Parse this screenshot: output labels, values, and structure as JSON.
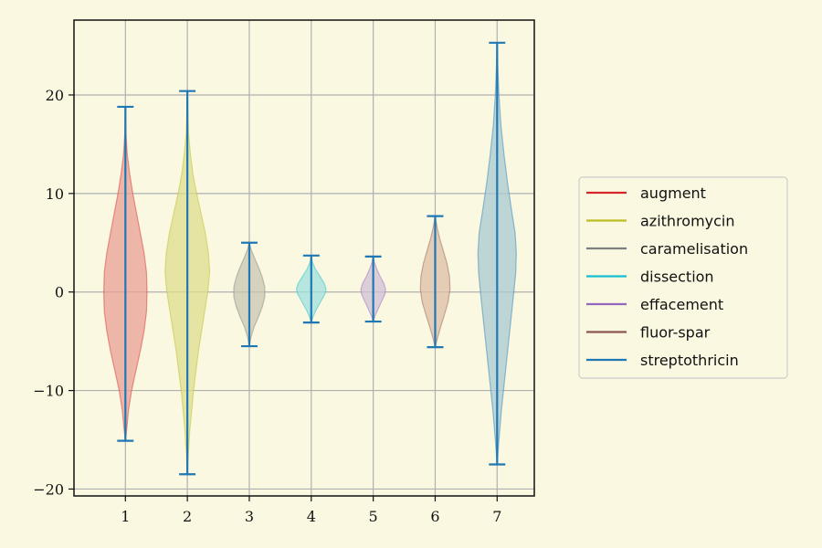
{
  "chart_data": {
    "type": "violin",
    "title": "",
    "xlabel": "",
    "ylabel": "",
    "x": [
      1,
      2,
      3,
      4,
      5,
      6,
      7
    ],
    "x_tick_labels": [
      "1",
      "2",
      "3",
      "4",
      "5",
      "6",
      "7"
    ],
    "y_ticks": [
      -20,
      -10,
      0,
      10,
      20
    ],
    "y_tick_labels": [
      "−20",
      "−10",
      "0",
      "10",
      "20"
    ],
    "xlim": [
      0.17,
      7.6
    ],
    "ylim": [
      -20.7,
      27.6
    ],
    "grid": true,
    "legend_position": "center-right, outside plot",
    "series": [
      {
        "name": "augment",
        "x": 1,
        "min": -15.1,
        "max": 18.8,
        "color": "#d62728",
        "fill": "#e8a095",
        "profile": [
          [
            -15.1,
            0.0
          ],
          [
            -14.0,
            0.02
          ],
          [
            -12.0,
            0.05
          ],
          [
            -10.0,
            0.1
          ],
          [
            -8.0,
            0.17
          ],
          [
            -6.0,
            0.24
          ],
          [
            -4.0,
            0.3
          ],
          [
            -2.0,
            0.34
          ],
          [
            0.0,
            0.35
          ],
          [
            2.0,
            0.34
          ],
          [
            4.0,
            0.3
          ],
          [
            6.0,
            0.24
          ],
          [
            8.0,
            0.18
          ],
          [
            10.0,
            0.12
          ],
          [
            12.0,
            0.07
          ],
          [
            14.0,
            0.03
          ],
          [
            16.0,
            0.01
          ],
          [
            18.8,
            0.0
          ]
        ]
      },
      {
        "name": "azithromycin",
        "x": 2,
        "min": -18.5,
        "max": 20.4,
        "color": "#bcbd22",
        "fill": "#dede8e",
        "profile": [
          [
            -18.5,
            0.0
          ],
          [
            -16.0,
            0.02
          ],
          [
            -14.0,
            0.04
          ],
          [
            -12.0,
            0.07
          ],
          [
            -10.0,
            0.1
          ],
          [
            -8.0,
            0.14
          ],
          [
            -6.0,
            0.18
          ],
          [
            -4.0,
            0.23
          ],
          [
            -2.0,
            0.28
          ],
          [
            0.0,
            0.33
          ],
          [
            2.0,
            0.36
          ],
          [
            4.0,
            0.34
          ],
          [
            6.0,
            0.29
          ],
          [
            8.0,
            0.22
          ],
          [
            10.0,
            0.15
          ],
          [
            12.0,
            0.09
          ],
          [
            14.0,
            0.05
          ],
          [
            16.0,
            0.02
          ],
          [
            18.0,
            0.01
          ],
          [
            20.4,
            0.0
          ]
        ]
      },
      {
        "name": "caramelisation",
        "x": 3,
        "min": -5.5,
        "max": 5.0,
        "color": "#7f7f7f",
        "fill": "#c8c5b0",
        "profile": [
          [
            -5.5,
            0.0
          ],
          [
            -4.5,
            0.03
          ],
          [
            -3.5,
            0.08
          ],
          [
            -2.5,
            0.15
          ],
          [
            -1.5,
            0.21
          ],
          [
            -0.5,
            0.25
          ],
          [
            0.5,
            0.25
          ],
          [
            1.5,
            0.21
          ],
          [
            2.5,
            0.15
          ],
          [
            3.5,
            0.08
          ],
          [
            4.3,
            0.03
          ],
          [
            5.0,
            0.0
          ]
        ]
      },
      {
        "name": "dissection",
        "x": 4,
        "min": -3.1,
        "max": 3.7,
        "color": "#17becf",
        "fill": "#9fe0dc",
        "profile": [
          [
            -3.1,
            0.0
          ],
          [
            -2.5,
            0.03
          ],
          [
            -1.8,
            0.08
          ],
          [
            -1.0,
            0.15
          ],
          [
            -0.2,
            0.22
          ],
          [
            0.3,
            0.24
          ],
          [
            0.9,
            0.21
          ],
          [
            1.6,
            0.14
          ],
          [
            2.3,
            0.07
          ],
          [
            3.0,
            0.02
          ],
          [
            3.7,
            0.0
          ]
        ]
      },
      {
        "name": "effacement",
        "x": 5,
        "min": -3.0,
        "max": 3.6,
        "color": "#9467bd",
        "fill": "#d0c0d6",
        "profile": [
          [
            -3.0,
            0.0
          ],
          [
            -2.4,
            0.03
          ],
          [
            -1.7,
            0.08
          ],
          [
            -0.9,
            0.14
          ],
          [
            -0.2,
            0.19
          ],
          [
            0.3,
            0.2
          ],
          [
            0.9,
            0.17
          ],
          [
            1.6,
            0.11
          ],
          [
            2.3,
            0.06
          ],
          [
            3.0,
            0.02
          ],
          [
            3.6,
            0.0
          ]
        ]
      },
      {
        "name": "fluor-spar",
        "x": 6,
        "min": -5.6,
        "max": 7.7,
        "color": "#8c564b",
        "fill": "#ddbfa5",
        "profile": [
          [
            -5.6,
            0.0
          ],
          [
            -4.6,
            0.04
          ],
          [
            -3.5,
            0.09
          ],
          [
            -2.3,
            0.15
          ],
          [
            -1.0,
            0.21
          ],
          [
            0.3,
            0.24
          ],
          [
            1.6,
            0.23
          ],
          [
            2.9,
            0.19
          ],
          [
            4.2,
            0.13
          ],
          [
            5.5,
            0.07
          ],
          [
            6.6,
            0.03
          ],
          [
            7.7,
            0.0
          ]
        ]
      },
      {
        "name": "streptothricin",
        "x": 7,
        "min": -17.5,
        "max": 25.3,
        "color": "#1f77b4",
        "fill": "#a9c9d2",
        "profile": [
          [
            -17.5,
            0.0
          ],
          [
            -15.0,
            0.03
          ],
          [
            -12.0,
            0.07
          ],
          [
            -9.0,
            0.12
          ],
          [
            -6.0,
            0.17
          ],
          [
            -3.0,
            0.22
          ],
          [
            0.0,
            0.27
          ],
          [
            2.0,
            0.3
          ],
          [
            4.0,
            0.31
          ],
          [
            6.0,
            0.29
          ],
          [
            8.0,
            0.24
          ],
          [
            11.0,
            0.17
          ],
          [
            14.0,
            0.11
          ],
          [
            17.0,
            0.06
          ],
          [
            20.0,
            0.03
          ],
          [
            23.0,
            0.01
          ],
          [
            25.3,
            0.0
          ]
        ]
      }
    ]
  }
}
